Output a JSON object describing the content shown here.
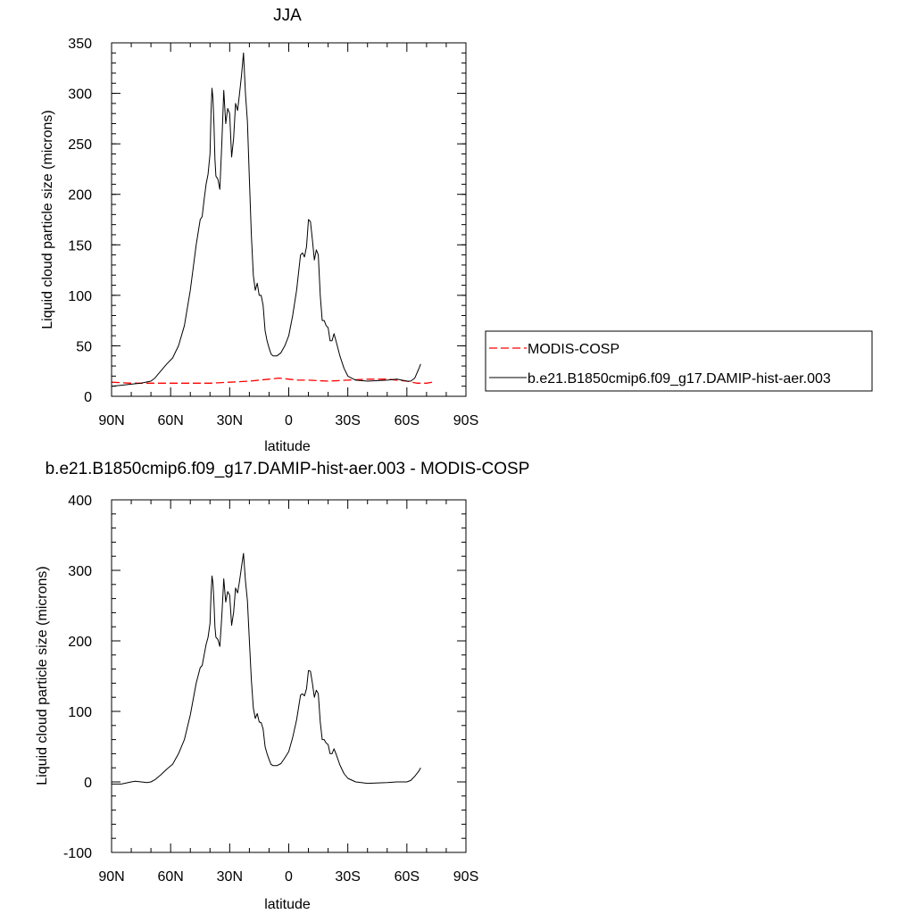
{
  "chart_data": [
    {
      "type": "line",
      "title": "JJA",
      "xlabel": "latitude",
      "ylabel": "Liquid cloud particle size (microns)",
      "xlim": [
        90,
        -90
      ],
      "ylim": [
        0,
        350
      ],
      "x_ticks": [
        90,
        60,
        30,
        0,
        -30,
        -60,
        -90
      ],
      "x_tick_labels": [
        "90N",
        "60N",
        "30N",
        "0",
        "30S",
        "60S",
        "90S"
      ],
      "y_ticks": [
        0,
        50,
        100,
        150,
        200,
        250,
        300,
        350
      ],
      "y_tick_labels": [
        "0",
        "50",
        "100",
        "150",
        "200",
        "250",
        "300",
        "350"
      ],
      "grid": false,
      "legend": {
        "placement": "right",
        "entries": [
          {
            "name": "MODIS-COSP",
            "color": "#ff0000",
            "dash": "dashed"
          },
          {
            "name": "b.e21.B1850cmip6.f09_g17.DAMIP-hist-aer.003",
            "color": "#000000",
            "dash": "solid"
          }
        ]
      },
      "series": [
        {
          "name": "MODIS-COSP",
          "color": "#ff0000",
          "dash": "dashed",
          "x": [
            90,
            80,
            70,
            60,
            50,
            40,
            30,
            20,
            15,
            10,
            5,
            0,
            -5,
            -10,
            -20,
            -30,
            -40,
            -50,
            -60,
            -65,
            -70,
            -73
          ],
          "y": [
            14,
            13,
            13,
            13,
            13,
            13,
            14,
            15,
            16,
            17,
            18,
            17,
            16,
            16,
            15,
            16,
            17,
            17,
            15,
            13,
            13,
            14
          ]
        },
        {
          "name": "b.e21.B1850cmip6.f09_g17.DAMIP-hist-aer.003",
          "color": "#000000",
          "dash": "solid",
          "x": [
            90,
            85,
            80,
            75,
            70,
            68,
            65,
            62,
            59,
            56,
            53,
            50,
            47,
            45,
            44,
            43,
            42,
            41,
            40,
            39.5,
            39,
            38.5,
            38,
            37.5,
            37,
            36,
            35,
            34,
            33,
            32,
            31,
            30,
            29,
            28,
            27,
            26,
            25,
            24,
            23,
            22,
            21,
            20,
            19,
            18,
            17,
            16,
            15,
            14,
            13,
            12,
            11,
            10,
            9,
            8,
            6,
            4,
            2,
            0,
            -2,
            -4,
            -6,
            -7,
            -8,
            -9,
            -10,
            -11,
            -12,
            -13,
            -14,
            -15,
            -16,
            -17,
            -18,
            -19,
            -20,
            -21,
            -22,
            -23,
            -24,
            -26,
            -28,
            -30,
            -34,
            -40,
            -50,
            -55,
            -60,
            -62,
            -64,
            -66,
            -67
          ],
          "y": [
            10,
            11,
            12,
            13,
            15,
            18,
            25,
            32,
            38,
            50,
            70,
            105,
            150,
            175,
            178,
            195,
            210,
            220,
            240,
            280,
            305,
            295,
            270,
            235,
            218,
            215,
            205,
            250,
            303,
            270,
            285,
            280,
            237,
            255,
            290,
            283,
            300,
            318,
            340,
            300,
            272,
            215,
            160,
            120,
            105,
            112,
            100,
            100,
            90,
            65,
            55,
            48,
            42,
            40,
            40,
            43,
            50,
            60,
            80,
            105,
            140,
            142,
            138,
            148,
            175,
            173,
            155,
            135,
            145,
            140,
            100,
            75,
            75,
            70,
            68,
            55,
            55,
            62,
            55,
            40,
            28,
            20,
            16,
            15,
            16,
            17,
            15,
            15,
            18,
            27,
            32
          ]
        }
      ]
    },
    {
      "type": "line",
      "title": "b.e21.B1850cmip6.f09_g17.DAMIP-hist-aer.003 - MODIS-COSP",
      "xlabel": "latitude",
      "ylabel": "Liquid cloud particle size (microns)",
      "xlim": [
        90,
        -90
      ],
      "ylim": [
        -100,
        400
      ],
      "x_ticks": [
        90,
        60,
        30,
        0,
        -30,
        -60,
        -90
      ],
      "x_tick_labels": [
        "90N",
        "60N",
        "30N",
        "0",
        "30S",
        "60S",
        "90S"
      ],
      "y_ticks": [
        -100,
        0,
        100,
        200,
        300,
        400
      ],
      "y_tick_labels": [
        "-100",
        "0",
        "100",
        "200",
        "300",
        "400"
      ],
      "grid": false,
      "series": [
        {
          "name": "",
          "color": "#000000",
          "dash": "solid",
          "x": [
            90,
            85,
            80,
            78,
            75,
            72,
            70,
            68,
            65,
            62,
            59,
            56,
            53,
            50,
            47,
            45,
            44,
            43,
            42,
            41,
            40,
            39.5,
            39,
            38.5,
            38,
            37.5,
            37,
            36,
            35,
            34,
            33,
            32,
            31,
            30,
            29,
            28,
            27,
            26,
            25,
            24,
            23,
            22,
            21,
            20,
            19,
            18,
            17,
            16,
            15,
            14,
            13,
            12,
            11,
            10,
            9,
            8,
            6,
            4,
            2,
            0,
            -2,
            -4,
            -6,
            -7,
            -8,
            -9,
            -10,
            -11,
            -12,
            -13,
            -14,
            -15,
            -16,
            -17,
            -18,
            -19,
            -20,
            -21,
            -22,
            -23,
            -24,
            -26,
            -28,
            -30,
            -34,
            -40,
            -50,
            -55,
            -60,
            -62,
            -64,
            -66,
            -67
          ],
          "y": [
            -3,
            -3,
            0,
            1,
            0,
            -1,
            0,
            3,
            10,
            18,
            25,
            40,
            60,
            95,
            140,
            162,
            165,
            180,
            195,
            205,
            225,
            265,
            292,
            282,
            255,
            220,
            205,
            202,
            192,
            235,
            288,
            255,
            270,
            265,
            222,
            240,
            275,
            268,
            285,
            305,
            324,
            285,
            257,
            200,
            145,
            105,
            90,
            97,
            85,
            84,
            75,
            50,
            40,
            32,
            25,
            23,
            23,
            26,
            34,
            43,
            63,
            88,
            123,
            125,
            122,
            132,
            158,
            157,
            140,
            120,
            130,
            125,
            85,
            60,
            60,
            55,
            53,
            40,
            40,
            47,
            40,
            24,
            12,
            5,
            0,
            -2,
            -1,
            0,
            0,
            2,
            8,
            15,
            20
          ]
        }
      ]
    }
  ]
}
